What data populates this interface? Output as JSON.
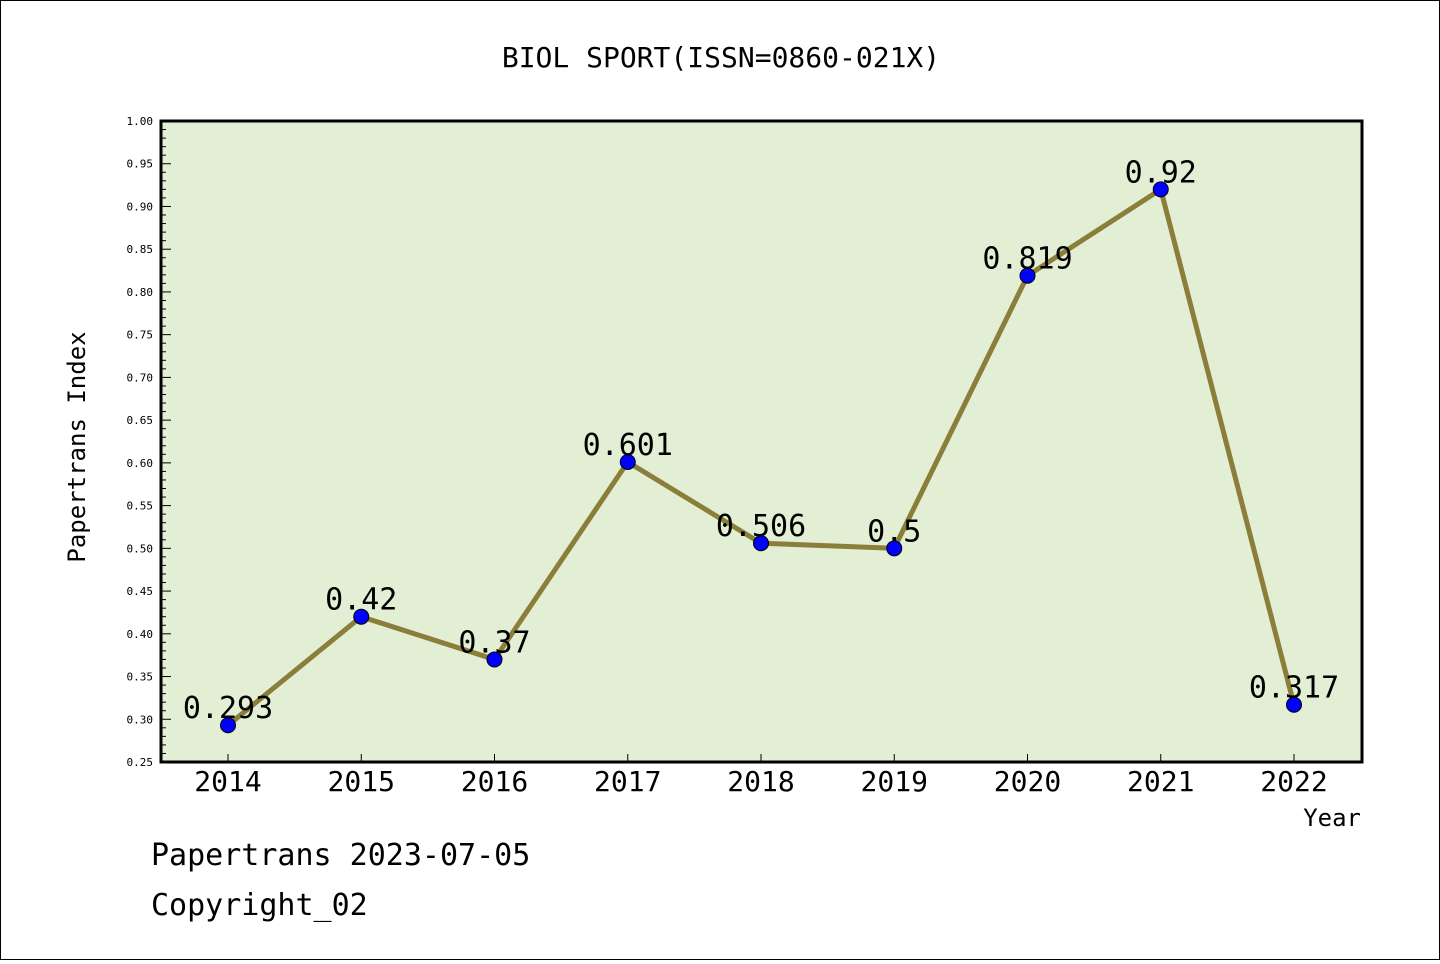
{
  "chart_data": {
    "type": "line",
    "title": "BIOL SPORT(ISSN=0860-021X)",
    "xlabel": "Year",
    "ylabel": "Papertrans Index",
    "categories": [
      "2014",
      "2015",
      "2016",
      "2017",
      "2018",
      "2019",
      "2020",
      "2021",
      "2022"
    ],
    "values": [
      0.293,
      0.42,
      0.37,
      0.601,
      0.506,
      0.5,
      0.819,
      0.92,
      0.317
    ],
    "data_labels": [
      "0.293",
      "0.42",
      "0.37",
      "0.601",
      "0.506",
      "0.5",
      "0.819",
      "0.92",
      "0.317"
    ],
    "ylim": [
      0.25,
      1.0
    ],
    "yticks": [
      "0.25",
      "0.30",
      "0.35",
      "0.40",
      "0.45",
      "0.50",
      "0.55",
      "0.60",
      "0.65",
      "0.70",
      "0.75",
      "0.80",
      "0.85",
      "0.90",
      "0.95",
      "1.00"
    ],
    "grid": false,
    "colors": {
      "plot_background": "#e2efd4",
      "line": "#8b7d3a",
      "marker": "#0000ff"
    }
  },
  "footer": {
    "line1": "Papertrans 2023-07-05",
    "line2": "Copyright_02"
  }
}
